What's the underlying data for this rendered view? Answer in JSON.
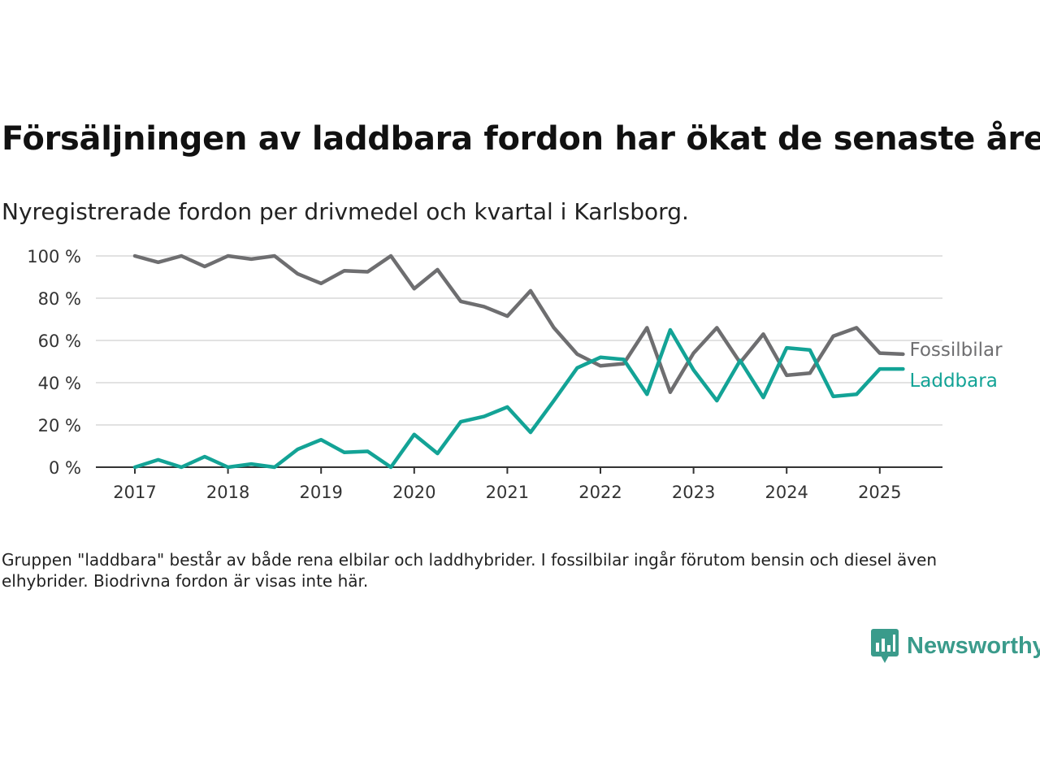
{
  "header": {
    "title": "Försäljningen av laddbara fordon har ökat de senaste åren",
    "subtitle": "Nyregistrerade fordon per drivmedel och kvartal i Karlsborg."
  },
  "footer": {
    "note": "Gruppen \"laddbara\" består av både rena elbilar och laddhybrider. I fossilbilar ingår förutom bensin och diesel även elhybrider. Biodrivna fordon är visas inte här.",
    "logo_text": "Newsworthy"
  },
  "colors": {
    "fossil": "#6e6e70",
    "laddbara": "#13a396",
    "grid": "#d9d9d9",
    "axis": "#333333",
    "logo": "#3a9b8b"
  },
  "icons": {
    "logo": "bar-chart-speech-bubble-icon"
  },
  "chart_data": {
    "type": "line",
    "title": "Försäljningen av laddbara fordon har ökat de senaste åren",
    "subtitle": "Nyregistrerade fordon per drivmedel och kvartal i Karlsborg.",
    "xlabel": "",
    "ylabel": "",
    "x_ticks": [
      "2017",
      "2018",
      "2019",
      "2020",
      "2021",
      "2022",
      "2023",
      "2024",
      "2025"
    ],
    "y_ticks": [
      "0 %",
      "20 %",
      "40 %",
      "60 %",
      "80 %",
      "100 %"
    ],
    "y_tick_values": [
      0,
      20,
      40,
      60,
      80,
      100
    ],
    "ylim": [
      0,
      100
    ],
    "xlim": [
      "2017-Q1",
      "2025-Q2"
    ],
    "grid": true,
    "legend": "direct labels at right end of lines",
    "x": [
      "2017-Q1",
      "2017-Q2",
      "2017-Q3",
      "2017-Q4",
      "2018-Q1",
      "2018-Q2",
      "2018-Q3",
      "2018-Q4",
      "2019-Q1",
      "2019-Q2",
      "2019-Q3",
      "2019-Q4",
      "2020-Q1",
      "2020-Q2",
      "2020-Q3",
      "2020-Q4",
      "2021-Q1",
      "2021-Q2",
      "2021-Q3",
      "2021-Q4",
      "2022-Q1",
      "2022-Q2",
      "2022-Q3",
      "2022-Q4",
      "2023-Q1",
      "2023-Q2",
      "2023-Q3",
      "2023-Q4",
      "2024-Q1",
      "2024-Q2",
      "2024-Q3",
      "2024-Q4",
      "2025-Q1",
      "2025-Q2"
    ],
    "series": [
      {
        "name": "Fossilbilar",
        "values": [
          100,
          97,
          100,
          95,
          100,
          98.5,
          100,
          91.5,
          87,
          93,
          92.5,
          100,
          84.5,
          93.5,
          78.5,
          76,
          71.5,
          83.5,
          66,
          53.5,
          48,
          49,
          66,
          35.5,
          54,
          66,
          49.5,
          63,
          43.5,
          44.5,
          62,
          66,
          54,
          53.5
        ]
      },
      {
        "name": "Laddbara",
        "values": [
          0,
          3.5,
          0,
          5,
          0,
          1.5,
          0,
          8.5,
          13,
          7,
          7.5,
          0,
          15.5,
          6.5,
          21.5,
          24,
          28.5,
          16.5,
          31.5,
          47,
          52,
          51,
          34.5,
          65,
          46,
          31.5,
          50.5,
          33,
          56.5,
          55.5,
          33.5,
          34.5,
          46.5,
          46.5
        ]
      }
    ]
  }
}
